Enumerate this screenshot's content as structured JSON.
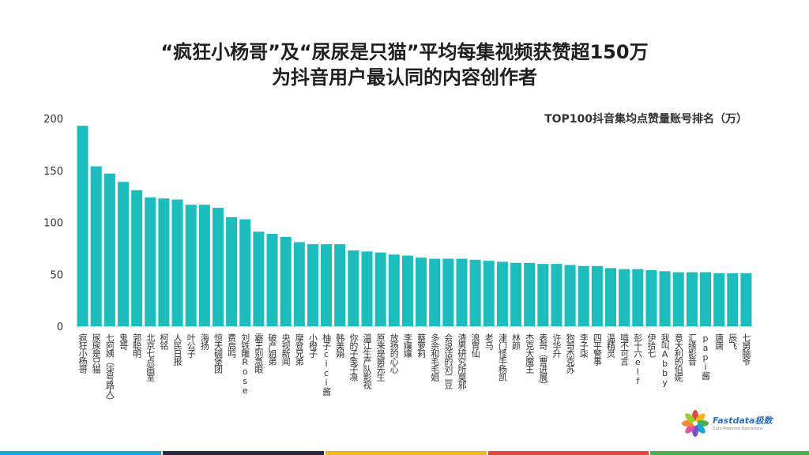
{
  "title": {
    "line1": "“疯狂小杨哥”及“尿尿是只猫”平均每集视频获赞超150万",
    "line2": "为抖音用户最认同的内容创作者"
  },
  "logo": {
    "name": "Fastdata极数",
    "tagline": "Data Powered Operations"
  },
  "colors": {
    "bar": "#1dbdbd",
    "footer": [
      "#1aa6d9",
      "#222a3a",
      "#f2b51e",
      "#e0483c",
      "#49b04a"
    ]
  },
  "chart_data": {
    "type": "bar",
    "title": "TOP100抖音集均点赞量账号排名（万）",
    "xlabel": "",
    "ylabel": "",
    "ylim": [
      0,
      200
    ],
    "yticks": [
      0,
      50,
      100,
      150,
      200
    ],
    "grid": false,
    "categories": [
      "疯狂小杨哥",
      "尿尿是只猫",
      "七阿姨（柒号路人）",
      "鬼哥",
      "郭聪明",
      "北京七点画室",
      "柯铭",
      "人民日报",
      "叶公子",
      "海扬",
      "惊天碉堡团",
      "费启鸣",
      "刘铁雕Rose",
      "霸王别急眼",
      "破产姐弟",
      "央视新闻",
      "摩登兄弟",
      "小橙子",
      "柚子cici酱",
      "韩美娟",
      "你的子笺子凛",
      "温江生产队影视",
      "原来是舅先生",
      "放扬的心心",
      "李孃孃",
      "蔡萝莉",
      "多余和毛毛姐",
      "会说话的刘二豆",
      "渣男研究所莫邪",
      "浪胃仙",
      "老马",
      "津门怪手杨凯",
      "林颜",
      "杰克大魔王",
      "表哥（曹进展）",
      "许华升",
      "狗哥杰克苏",
      "李子柒",
      "四平警事",
      "温精灵",
      "喵不可言",
      "彭十六elf",
      "伊拾七",
      "我叫Abby",
      "意大利的伯妮",
      "汇缘影音",
      "papi酱",
      "唐唐",
      "辰飞",
      "七舅脑爷"
    ],
    "values": [
      193,
      154,
      147,
      139,
      131,
      124,
      123,
      122,
      117,
      117,
      114,
      105,
      103,
      91,
      89,
      86,
      81,
      79,
      79,
      79,
      73,
      72,
      71,
      69,
      68,
      66,
      65,
      65,
      65,
      64,
      63,
      62,
      61,
      61,
      60,
      60,
      59,
      58,
      58,
      56,
      55,
      55,
      54,
      53,
      52,
      52,
      52,
      51,
      51,
      51
    ]
  }
}
